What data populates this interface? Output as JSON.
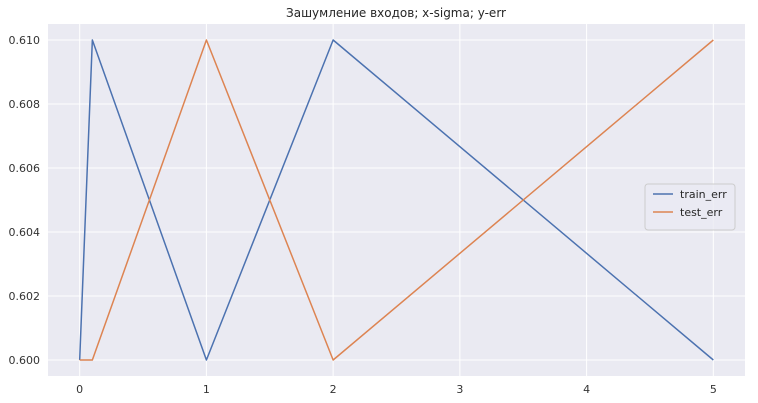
{
  "chart_data": {
    "type": "line",
    "title": "Зашумление входов; x-sigma; y-err",
    "xlabel": "",
    "ylabel": "",
    "xlim": [
      -0.25,
      5.25
    ],
    "ylim": [
      0.5995,
      0.6105
    ],
    "xticks": [
      0,
      1,
      2,
      3,
      4,
      5
    ],
    "yticks": [
      0.6,
      0.602,
      0.604,
      0.606,
      0.608,
      0.61
    ],
    "xtick_labels": [
      "0",
      "1",
      "2",
      "3",
      "4",
      "5"
    ],
    "ytick_labels": [
      "0.600",
      "0.602",
      "0.604",
      "0.606",
      "0.608",
      "0.610"
    ],
    "grid": true,
    "legend_position": "center-right",
    "series": [
      {
        "name": "train_err",
        "color": "#4c72b0",
        "x": [
          0,
          0.1,
          1,
          2,
          5
        ],
        "y": [
          0.6,
          0.61,
          0.6,
          0.61,
          0.6
        ]
      },
      {
        "name": "test_err",
        "color": "#dd8452",
        "x": [
          0,
          0.1,
          1,
          2,
          5
        ],
        "y": [
          0.6,
          0.6,
          0.61,
          0.6,
          0.61
        ]
      }
    ]
  }
}
